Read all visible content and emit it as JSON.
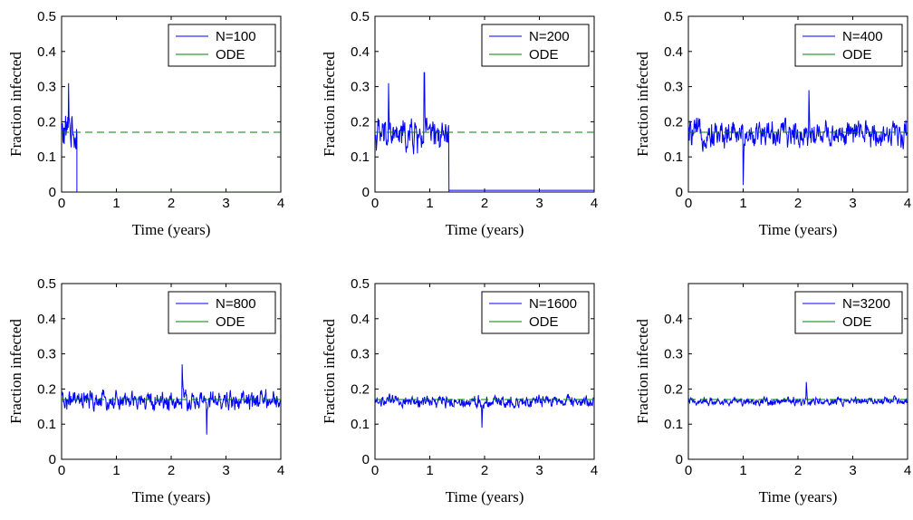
{
  "colors": {
    "sim": "#0000ff",
    "ode": "#008000",
    "axis": "#000000"
  },
  "chart_data": [
    {
      "type": "line",
      "xlabel": "Time (years)",
      "ylabel": "Fraction infected",
      "xlim": [
        0,
        4
      ],
      "ylim": [
        0,
        0.5
      ],
      "xticks": [
        "0",
        "1",
        "2",
        "3",
        "4"
      ],
      "yticks": [
        "0",
        "0.1",
        "0.2",
        "0.3",
        "0.4",
        "0.5"
      ],
      "legend_position": "top-right",
      "grid": false,
      "series": [
        {
          "name": "N=100",
          "style": "solid",
          "color": "#0000ff",
          "noise": {
            "mean": 0.17,
            "amp": 0.075,
            "extinction_time": 0.28,
            "after": 0.0,
            "peaks": [
              [
                0.13,
                0.31
              ]
            ]
          }
        },
        {
          "name": "ODE",
          "style": "dashed",
          "color": "#008000",
          "y": 0.17
        }
      ]
    },
    {
      "type": "line",
      "xlabel": "Time (years)",
      "ylabel": "Fraction infected",
      "xlim": [
        0,
        4
      ],
      "ylim": [
        0,
        0.5
      ],
      "xticks": [
        "0",
        "1",
        "2",
        "3",
        "4"
      ],
      "yticks": [
        "0",
        "0.1",
        "0.2",
        "0.3",
        "0.4",
        "0.5"
      ],
      "legend_position": "top-right",
      "grid": false,
      "series": [
        {
          "name": "N=200",
          "style": "solid",
          "color": "#0000ff",
          "noise": {
            "mean": 0.16,
            "amp": 0.06,
            "extinction_time": 1.35,
            "after": 0.005,
            "peaks": [
              [
                0.25,
                0.31
              ],
              [
                0.9,
                0.34
              ]
            ]
          }
        },
        {
          "name": "ODE",
          "style": "dashed",
          "color": "#008000",
          "y": 0.17
        }
      ]
    },
    {
      "type": "line",
      "xlabel": "Time (years)",
      "ylabel": "Fraction infected",
      "xlim": [
        0,
        4
      ],
      "ylim": [
        0,
        0.5
      ],
      "xticks": [
        "0",
        "1",
        "2",
        "3",
        "4"
      ],
      "yticks": [
        "0",
        "0.1",
        "0.2",
        "0.3",
        "0.4",
        "0.5"
      ],
      "legend_position": "top-right",
      "grid": false,
      "series": [
        {
          "name": "N=400",
          "style": "solid",
          "color": "#0000ff",
          "noise": {
            "mean": 0.165,
            "amp": 0.05,
            "peaks": [
              [
                1.0,
                0.02
              ],
              [
                2.2,
                0.29
              ]
            ]
          }
        },
        {
          "name": "ODE",
          "style": "dashed",
          "color": "#008000",
          "y": 0.17
        }
      ]
    },
    {
      "type": "line",
      "xlabel": "Time (years)",
      "ylabel": "Fraction infected",
      "xlim": [
        0,
        4
      ],
      "ylim": [
        0,
        0.5
      ],
      "xticks": [
        "0",
        "1",
        "2",
        "3",
        "4"
      ],
      "yticks": [
        "0",
        "0.1",
        "0.2",
        "0.3",
        "0.4",
        "0.5"
      ],
      "legend_position": "top-right",
      "grid": false,
      "series": [
        {
          "name": "N=800",
          "style": "solid",
          "color": "#0000ff",
          "noise": {
            "mean": 0.165,
            "amp": 0.035,
            "peaks": [
              [
                2.2,
                0.27
              ],
              [
                2.65,
                0.07
              ]
            ]
          }
        },
        {
          "name": "ODE",
          "style": "dashed",
          "color": "#008000",
          "y": 0.17
        }
      ]
    },
    {
      "type": "line",
      "xlabel": "Time (years)",
      "ylabel": "Fraction infected",
      "xlim": [
        0,
        4
      ],
      "ylim": [
        0,
        0.5
      ],
      "xticks": [
        "0",
        "1",
        "2",
        "3",
        "4"
      ],
      "yticks": [
        "0",
        "0.1",
        "0.2",
        "0.3",
        "0.4",
        "0.5"
      ],
      "legend_position": "top-right",
      "grid": false,
      "series": [
        {
          "name": "N=1600",
          "style": "solid",
          "color": "#0000ff",
          "noise": {
            "mean": 0.165,
            "amp": 0.022,
            "peaks": [
              [
                1.95,
                0.09
              ]
            ]
          }
        },
        {
          "name": "ODE",
          "style": "dashed",
          "color": "#008000",
          "y": 0.17
        }
      ]
    },
    {
      "type": "line",
      "xlabel": "Time (years)",
      "ylabel": "Fraction infected",
      "xlim": [
        0,
        4
      ],
      "ylim": [
        0,
        0.5
      ],
      "xticks": [
        "0",
        "1",
        "2",
        "3",
        "4"
      ],
      "yticks": [
        "0",
        "0.1",
        "0.2",
        "0.3",
        "0.4"
      ],
      "legend_position": "top-right",
      "grid": false,
      "series": [
        {
          "name": "N=3200",
          "style": "solid",
          "color": "#0000ff",
          "noise": {
            "mean": 0.165,
            "amp": 0.015,
            "peaks": [
              [
                2.15,
                0.22
              ]
            ]
          }
        },
        {
          "name": "ODE",
          "style": "dashed",
          "color": "#008000",
          "y": 0.17
        }
      ]
    }
  ]
}
